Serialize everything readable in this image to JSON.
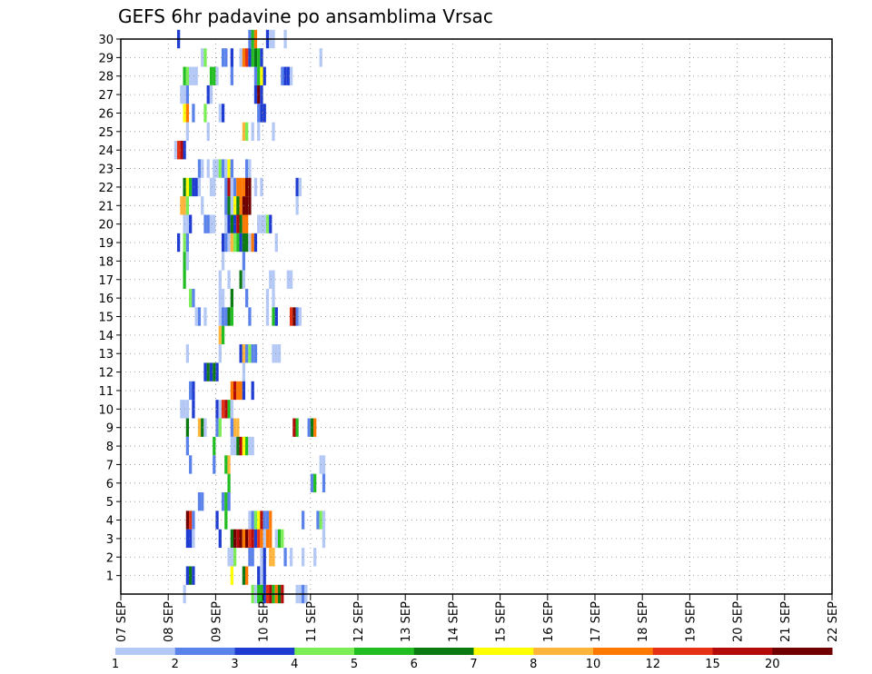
{
  "chart_data": {
    "type": "heatmap",
    "title": "GEFS 6hr padavine po ansamblima Vrsac",
    "xlabel": "",
    "ylabel": "",
    "x_tick_labels": [
      "07 SEP",
      "08 SEP",
      "09 SEP",
      "10 SEP",
      "11 SEP",
      "12 SEP",
      "13 SEP",
      "14 SEP",
      "15 SEP",
      "16 SEP",
      "17 SEP",
      "18 SEP",
      "19 SEP",
      "20 SEP",
      "21 SEP",
      "22 SEP"
    ],
    "xlim": [
      0,
      60
    ],
    "y_tick_labels": [
      "1",
      "2",
      "3",
      "4",
      "5",
      "6",
      "7",
      "8",
      "9",
      "10",
      "11",
      "12",
      "13",
      "14",
      "15",
      "16",
      "17",
      "18",
      "19",
      "20",
      "21",
      "22",
      "23",
      "24",
      "25",
      "26",
      "27",
      "28",
      "29",
      "30"
    ],
    "ylim": [
      0,
      30
    ],
    "grid": true,
    "colorbar": {
      "levels": [
        "1",
        "2",
        "3",
        "4",
        "5",
        "6",
        "7",
        "8",
        "10",
        "12",
        "15",
        "20"
      ],
      "colors": [
        "#b4c8f5",
        "#5a82eb",
        "#1e3cd2",
        "#7aee54",
        "#21be21",
        "#0c7a12",
        "#ffff00",
        "#ffb43c",
        "#ff7800",
        "#e63214",
        "#b40a0a",
        "#700000"
      ]
    },
    "cells": [
      [
        19,
        30,
        2
      ],
      [
        43,
        30,
        1
      ],
      [
        44,
        30,
        4
      ],
      [
        45,
        30,
        8
      ],
      [
        49,
        30,
        2
      ],
      [
        50,
        30,
        0
      ],
      [
        51,
        30,
        0
      ],
      [
        55,
        30,
        0
      ],
      [
        27,
        29,
        0
      ],
      [
        28,
        29,
        3
      ],
      [
        34,
        29,
        1
      ],
      [
        35,
        29,
        1
      ],
      [
        37,
        29,
        2
      ],
      [
        40,
        29,
        0
      ],
      [
        41,
        29,
        8
      ],
      [
        42,
        29,
        9
      ],
      [
        43,
        29,
        2
      ],
      [
        44,
        29,
        4
      ],
      [
        45,
        29,
        5
      ],
      [
        46,
        29,
        4
      ],
      [
        47,
        29,
        2
      ],
      [
        67,
        29,
        0
      ],
      [
        21,
        28,
        4
      ],
      [
        22,
        28,
        3
      ],
      [
        23,
        28,
        0
      ],
      [
        24,
        28,
        0
      ],
      [
        25,
        28,
        0
      ],
      [
        30,
        28,
        4
      ],
      [
        31,
        28,
        4
      ],
      [
        32,
        28,
        0
      ],
      [
        37,
        28,
        1
      ],
      [
        45,
        28,
        1
      ],
      [
        46,
        28,
        4
      ],
      [
        47,
        28,
        6
      ],
      [
        48,
        28,
        2
      ],
      [
        54,
        28,
        1
      ],
      [
        55,
        28,
        2
      ],
      [
        56,
        28,
        2
      ],
      [
        57,
        28,
        0
      ],
      [
        20,
        27,
        0
      ],
      [
        21,
        27,
        0
      ],
      [
        22,
        27,
        1
      ],
      [
        29,
        27,
        2
      ],
      [
        30,
        27,
        0
      ],
      [
        45,
        27,
        2
      ],
      [
        46,
        27,
        11
      ],
      [
        47,
        27,
        2
      ],
      [
        21,
        26,
        6
      ],
      [
        22,
        26,
        8
      ],
      [
        24,
        26,
        1
      ],
      [
        28,
        26,
        3
      ],
      [
        33,
        26,
        0
      ],
      [
        34,
        26,
        2
      ],
      [
        46,
        26,
        1
      ],
      [
        47,
        26,
        2
      ],
      [
        48,
        26,
        2
      ],
      [
        22,
        25,
        0
      ],
      [
        29,
        25,
        0
      ],
      [
        41,
        25,
        7
      ],
      [
        42,
        25,
        3
      ],
      [
        44,
        25,
        0
      ],
      [
        46,
        25,
        0
      ],
      [
        51,
        25,
        0
      ],
      [
        18,
        24,
        0
      ],
      [
        19,
        24,
        9
      ],
      [
        20,
        24,
        10
      ],
      [
        21,
        24,
        2
      ],
      [
        26,
        23,
        1
      ],
      [
        27,
        23,
        0
      ],
      [
        29,
        23,
        0
      ],
      [
        31,
        23,
        0
      ],
      [
        32,
        23,
        0
      ],
      [
        33,
        23,
        3
      ],
      [
        34,
        23,
        1
      ],
      [
        35,
        23,
        0
      ],
      [
        36,
        23,
        6
      ],
      [
        37,
        23,
        1
      ],
      [
        42,
        23,
        1
      ],
      [
        43,
        23,
        0
      ],
      [
        21,
        22,
        5
      ],
      [
        22,
        22,
        6
      ],
      [
        23,
        22,
        4
      ],
      [
        24,
        22,
        2
      ],
      [
        25,
        22,
        2
      ],
      [
        26,
        22,
        0
      ],
      [
        30,
        22,
        0
      ],
      [
        31,
        22,
        0
      ],
      [
        35,
        22,
        1
      ],
      [
        36,
        22,
        10
      ],
      [
        37,
        22,
        0
      ],
      [
        38,
        22,
        1
      ],
      [
        39,
        22,
        8
      ],
      [
        40,
        22,
        8
      ],
      [
        41,
        22,
        8
      ],
      [
        42,
        22,
        11
      ],
      [
        43,
        22,
        11
      ],
      [
        45,
        22,
        0
      ],
      [
        47,
        22,
        0
      ],
      [
        59,
        22,
        2
      ],
      [
        60,
        22,
        0
      ],
      [
        20,
        21,
        7
      ],
      [
        21,
        21,
        7
      ],
      [
        22,
        21,
        3
      ],
      [
        27,
        21,
        0
      ],
      [
        35,
        21,
        1
      ],
      [
        36,
        21,
        5
      ],
      [
        37,
        21,
        0
      ],
      [
        38,
        21,
        6
      ],
      [
        39,
        21,
        5
      ],
      [
        40,
        21,
        8
      ],
      [
        41,
        21,
        11
      ],
      [
        42,
        21,
        11
      ],
      [
        43,
        21,
        11
      ],
      [
        59,
        21,
        0
      ],
      [
        21,
        20,
        0
      ],
      [
        22,
        20,
        0
      ],
      [
        23,
        20,
        2
      ],
      [
        28,
        20,
        1
      ],
      [
        29,
        20,
        1
      ],
      [
        30,
        20,
        0
      ],
      [
        31,
        20,
        0
      ],
      [
        35,
        20,
        0
      ],
      [
        36,
        20,
        2
      ],
      [
        37,
        20,
        5
      ],
      [
        38,
        20,
        2
      ],
      [
        39,
        20,
        10
      ],
      [
        40,
        20,
        5
      ],
      [
        41,
        20,
        8
      ],
      [
        42,
        20,
        8
      ],
      [
        46,
        20,
        0
      ],
      [
        47,
        20,
        0
      ],
      [
        48,
        20,
        0
      ],
      [
        49,
        20,
        3
      ],
      [
        50,
        20,
        2
      ],
      [
        19,
        19,
        2
      ],
      [
        21,
        19,
        3
      ],
      [
        22,
        19,
        1
      ],
      [
        34,
        19,
        2
      ],
      [
        35,
        19,
        1
      ],
      [
        36,
        19,
        0
      ],
      [
        37,
        19,
        7
      ],
      [
        38,
        19,
        3
      ],
      [
        39,
        19,
        4
      ],
      [
        40,
        19,
        2
      ],
      [
        41,
        19,
        5
      ],
      [
        42,
        19,
        5
      ],
      [
        43,
        19,
        0
      ],
      [
        44,
        19,
        8
      ],
      [
        45,
        19,
        2
      ],
      [
        52,
        19,
        0
      ],
      [
        21,
        18,
        4
      ],
      [
        22,
        18,
        0
      ],
      [
        34,
        18,
        0
      ],
      [
        41,
        18,
        1
      ],
      [
        21,
        17,
        4
      ],
      [
        33,
        17,
        0
      ],
      [
        36,
        17,
        0
      ],
      [
        40,
        17,
        5
      ],
      [
        41,
        17,
        0
      ],
      [
        50,
        17,
        0
      ],
      [
        51,
        17,
        0
      ],
      [
        56,
        17,
        0
      ],
      [
        57,
        17,
        0
      ],
      [
        23,
        16,
        3
      ],
      [
        24,
        16,
        1
      ],
      [
        33,
        16,
        0
      ],
      [
        34,
        16,
        0
      ],
      [
        37,
        16,
        5
      ],
      [
        42,
        16,
        1
      ],
      [
        49,
        16,
        0
      ],
      [
        51,
        16,
        0
      ],
      [
        25,
        15,
        0
      ],
      [
        26,
        15,
        1
      ],
      [
        28,
        15,
        0
      ],
      [
        33,
        15,
        0
      ],
      [
        34,
        15,
        1
      ],
      [
        35,
        15,
        1
      ],
      [
        36,
        15,
        5
      ],
      [
        37,
        15,
        4
      ],
      [
        43,
        15,
        1
      ],
      [
        49,
        15,
        0
      ],
      [
        51,
        15,
        4
      ],
      [
        52,
        15,
        2
      ],
      [
        57,
        15,
        9
      ],
      [
        58,
        15,
        11
      ],
      [
        59,
        15,
        1
      ],
      [
        60,
        15,
        0
      ],
      [
        33,
        14,
        7
      ],
      [
        34,
        14,
        4
      ],
      [
        22,
        13,
        0
      ],
      [
        33,
        13,
        0
      ],
      [
        40,
        13,
        2
      ],
      [
        41,
        13,
        7
      ],
      [
        42,
        13,
        1
      ],
      [
        43,
        13,
        3
      ],
      [
        44,
        13,
        1
      ],
      [
        45,
        13,
        1
      ],
      [
        51,
        13,
        0
      ],
      [
        52,
        13,
        0
      ],
      [
        53,
        13,
        0
      ],
      [
        28,
        12,
        2
      ],
      [
        29,
        12,
        5
      ],
      [
        30,
        12,
        2
      ],
      [
        31,
        12,
        5
      ],
      [
        32,
        12,
        2
      ],
      [
        41,
        12,
        0
      ],
      [
        23,
        11,
        1
      ],
      [
        24,
        11,
        2
      ],
      [
        37,
        11,
        8
      ],
      [
        38,
        11,
        10
      ],
      [
        39,
        11,
        8
      ],
      [
        40,
        11,
        8
      ],
      [
        41,
        11,
        2
      ],
      [
        44,
        11,
        2
      ],
      [
        20,
        10,
        0
      ],
      [
        21,
        10,
        0
      ],
      [
        22,
        10,
        0
      ],
      [
        24,
        10,
        2
      ],
      [
        32,
        10,
        2
      ],
      [
        33,
        10,
        0
      ],
      [
        34,
        10,
        9
      ],
      [
        35,
        10,
        10
      ],
      [
        36,
        10,
        4
      ],
      [
        37,
        10,
        0
      ],
      [
        22,
        9,
        5
      ],
      [
        26,
        9,
        7
      ],
      [
        27,
        9,
        5
      ],
      [
        28,
        9,
        0
      ],
      [
        32,
        9,
        1
      ],
      [
        33,
        9,
        3
      ],
      [
        37,
        9,
        1
      ],
      [
        38,
        9,
        7
      ],
      [
        39,
        9,
        7
      ],
      [
        58,
        9,
        10
      ],
      [
        59,
        9,
        4
      ],
      [
        63,
        9,
        1
      ],
      [
        64,
        9,
        5
      ],
      [
        65,
        9,
        8
      ],
      [
        22,
        8,
        1
      ],
      [
        31,
        8,
        4
      ],
      [
        37,
        8,
        0
      ],
      [
        38,
        8,
        0
      ],
      [
        39,
        8,
        5
      ],
      [
        40,
        8,
        10
      ],
      [
        41,
        8,
        6
      ],
      [
        42,
        8,
        4
      ],
      [
        43,
        8,
        0
      ],
      [
        44,
        8,
        0
      ],
      [
        23,
        7,
        1
      ],
      [
        31,
        7,
        1
      ],
      [
        35,
        7,
        4
      ],
      [
        36,
        7,
        7
      ],
      [
        67,
        7,
        0
      ],
      [
        68,
        7,
        0
      ],
      [
        36,
        6,
        4
      ],
      [
        64,
        6,
        1
      ],
      [
        65,
        6,
        4
      ],
      [
        68,
        6,
        1
      ],
      [
        26,
        5,
        1
      ],
      [
        27,
        5,
        1
      ],
      [
        34,
        5,
        1
      ],
      [
        35,
        5,
        4
      ],
      [
        36,
        5,
        1
      ],
      [
        22,
        4,
        11
      ],
      [
        23,
        4,
        9
      ],
      [
        24,
        4,
        1
      ],
      [
        32,
        4,
        2
      ],
      [
        35,
        4,
        4
      ],
      [
        43,
        4,
        0
      ],
      [
        44,
        4,
        1
      ],
      [
        45,
        4,
        3
      ],
      [
        46,
        4,
        6
      ],
      [
        47,
        4,
        10
      ],
      [
        48,
        4,
        1
      ],
      [
        49,
        4,
        1
      ],
      [
        50,
        4,
        8
      ],
      [
        61,
        4,
        1
      ],
      [
        66,
        4,
        1
      ],
      [
        67,
        4,
        3
      ],
      [
        68,
        4,
        0
      ],
      [
        22,
        3,
        2
      ],
      [
        23,
        3,
        2
      ],
      [
        24,
        3,
        0
      ],
      [
        33,
        3,
        2
      ],
      [
        37,
        3,
        5
      ],
      [
        38,
        3,
        11
      ],
      [
        39,
        3,
        10
      ],
      [
        40,
        3,
        11
      ],
      [
        41,
        3,
        8
      ],
      [
        42,
        3,
        11
      ],
      [
        43,
        3,
        9
      ],
      [
        44,
        3,
        10
      ],
      [
        45,
        3,
        2
      ],
      [
        46,
        3,
        9
      ],
      [
        47,
        3,
        8
      ],
      [
        48,
        3,
        0
      ],
      [
        49,
        3,
        8
      ],
      [
        50,
        3,
        8
      ],
      [
        52,
        3,
        0
      ],
      [
        53,
        3,
        4
      ],
      [
        54,
        3,
        3
      ],
      [
        68,
        3,
        0
      ],
      [
        36,
        2,
        0
      ],
      [
        37,
        2,
        0
      ],
      [
        38,
        2,
        3
      ],
      [
        43,
        2,
        1
      ],
      [
        44,
        2,
        1
      ],
      [
        47,
        2,
        0
      ],
      [
        48,
        2,
        2
      ],
      [
        50,
        2,
        7
      ],
      [
        51,
        2,
        7
      ],
      [
        55,
        2,
        1
      ],
      [
        57,
        2,
        0
      ],
      [
        61,
        2,
        0
      ],
      [
        65,
        2,
        0
      ],
      [
        22,
        1,
        2
      ],
      [
        23,
        1,
        5
      ],
      [
        24,
        1,
        2
      ],
      [
        37,
        1,
        6
      ],
      [
        41,
        1,
        5
      ],
      [
        42,
        1,
        8
      ],
      [
        46,
        1,
        2
      ],
      [
        47,
        1,
        0
      ],
      [
        48,
        1,
        2
      ],
      [
        21,
        0,
        0
      ],
      [
        44,
        0,
        3
      ],
      [
        45,
        0,
        0
      ],
      [
        46,
        0,
        4
      ],
      [
        47,
        0,
        4
      ],
      [
        48,
        0,
        2
      ],
      [
        49,
        0,
        9
      ],
      [
        50,
        0,
        10
      ],
      [
        51,
        0,
        4
      ],
      [
        52,
        0,
        8
      ],
      [
        53,
        0,
        5
      ],
      [
        54,
        0,
        10
      ],
      [
        59,
        0,
        0
      ],
      [
        60,
        0,
        0
      ],
      [
        61,
        0,
        1
      ],
      [
        62,
        0,
        0
      ]
    ]
  }
}
